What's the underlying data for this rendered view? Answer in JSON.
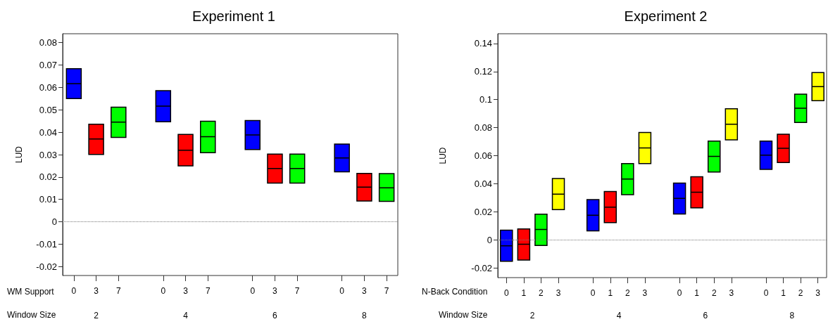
{
  "chart_data": [
    {
      "type": "box",
      "title": "Experiment 1",
      "xlabel": "WM Support",
      "ylabel": "LUD",
      "categories": [
        "0",
        "3",
        "7",
        null,
        "0",
        "3",
        "7",
        null,
        "0",
        "3",
        "7",
        null,
        "0",
        "3",
        "7"
      ],
      "colors": [
        "#0000ff",
        "#ff0000",
        "#00ff00",
        null,
        "#0000ff",
        "#ff0000",
        "#00ff00",
        null,
        "#0000ff",
        "#ff0000",
        "#00ff00",
        null,
        "#0000ff",
        "#ff0000",
        "#00ff00"
      ],
      "boxes": [
        {
          "low": 0.055,
          "q1": 0.055,
          "median": 0.0617,
          "q3": 0.0684,
          "high": 0.0684
        },
        {
          "low": 0.0301,
          "q1": 0.0301,
          "median": 0.037,
          "q3": 0.0436,
          "high": 0.0436
        },
        {
          "low": 0.0377,
          "q1": 0.0377,
          "median": 0.0445,
          "q3": 0.0512,
          "high": 0.0512
        },
        null,
        {
          "low": 0.0447,
          "q1": 0.0447,
          "median": 0.0517,
          "q3": 0.0586,
          "high": 0.0586
        },
        {
          "low": 0.025,
          "q1": 0.025,
          "median": 0.032,
          "q3": 0.039,
          "high": 0.039
        },
        {
          "low": 0.0309,
          "q1": 0.0309,
          "median": 0.038,
          "q3": 0.0449,
          "high": 0.0449
        },
        null,
        {
          "low": 0.0323,
          "q1": 0.0323,
          "median": 0.0388,
          "q3": 0.0452,
          "high": 0.0452
        },
        {
          "low": 0.0173,
          "q1": 0.0173,
          "median": 0.0238,
          "q3": 0.0302,
          "high": 0.0302
        },
        {
          "low": 0.0173,
          "q1": 0.0173,
          "median": 0.0238,
          "q3": 0.0302,
          "high": 0.0302
        },
        null,
        {
          "low": 0.0223,
          "q1": 0.0223,
          "median": 0.0285,
          "q3": 0.0347,
          "high": 0.0347
        },
        {
          "low": 0.0093,
          "q1": 0.0093,
          "median": 0.0155,
          "q3": 0.0216,
          "high": 0.0216
        },
        {
          "low": 0.0091,
          "q1": 0.0091,
          "median": 0.0152,
          "q3": 0.0215,
          "high": 0.0215
        }
      ],
      "ylim": [
        -0.024,
        0.084
      ],
      "yticks": [
        -0.02,
        -0.01,
        0,
        0.01,
        0.02,
        0.03,
        0.04,
        0.05,
        0.06,
        0.07,
        0.08
      ],
      "ref_lines": [
        {
          "axis": "y",
          "value": 0,
          "color": "#777777",
          "line_style": "dotted"
        }
      ],
      "annotations": [
        "Window Size",
        "2",
        "4",
        "6",
        "8"
      ],
      "grid": false
    },
    {
      "type": "box",
      "title": "Experiment 2",
      "xlabel": "N-Back Condition",
      "ylabel": "LUD",
      "categories": [
        "0",
        "1",
        "2",
        "3",
        null,
        "0",
        "1",
        "2",
        "3",
        null,
        "0",
        "1",
        "2",
        "3",
        null,
        "0",
        "1",
        "2",
        "3"
      ],
      "colors": [
        "#0000ff",
        "#ff0000",
        "#00ff00",
        "#ffff00",
        null,
        "#0000ff",
        "#ff0000",
        "#00ff00",
        "#ffff00",
        null,
        "#0000ff",
        "#ff0000",
        "#00ff00",
        "#ffff00",
        null,
        "#0000ff",
        "#ff0000",
        "#00ff00",
        "#ffff00"
      ],
      "boxes": [
        {
          "low": -0.0154,
          "q1": -0.0154,
          "median": -0.0043,
          "q3": 0.0068,
          "high": 0.0068
        },
        {
          "low": -0.0145,
          "q1": -0.0145,
          "median": -0.0032,
          "q3": 0.0077,
          "high": 0.0077
        },
        {
          "low": -0.004,
          "q1": -0.004,
          "median": 0.0073,
          "q3": 0.0183,
          "high": 0.0183
        },
        {
          "low": 0.0215,
          "q1": 0.0215,
          "median": 0.0326,
          "q3": 0.0437,
          "high": 0.0437
        },
        null,
        {
          "low": 0.0064,
          "q1": 0.0064,
          "median": 0.0175,
          "q3": 0.0286,
          "high": 0.0286
        },
        {
          "low": 0.0122,
          "q1": 0.0122,
          "median": 0.0233,
          "q3": 0.0344,
          "high": 0.0344
        },
        {
          "low": 0.0322,
          "q1": 0.0322,
          "median": 0.0433,
          "q3": 0.0544,
          "high": 0.0544
        },
        {
          "low": 0.0544,
          "q1": 0.0544,
          "median": 0.0655,
          "q3": 0.0766,
          "high": 0.0766
        },
        null,
        {
          "low": 0.0184,
          "q1": 0.0184,
          "median": 0.0295,
          "q3": 0.0405,
          "high": 0.0405
        },
        {
          "low": 0.0228,
          "q1": 0.0228,
          "median": 0.0339,
          "q3": 0.045,
          "high": 0.045
        },
        {
          "low": 0.0484,
          "q1": 0.0484,
          "median": 0.0595,
          "q3": 0.0704,
          "high": 0.0704
        },
        {
          "low": 0.0713,
          "q1": 0.0713,
          "median": 0.0824,
          "q3": 0.0935,
          "high": 0.0935
        },
        null,
        {
          "low": 0.0502,
          "q1": 0.0502,
          "median": 0.0604,
          "q3": 0.0704,
          "high": 0.0704
        },
        {
          "low": 0.0551,
          "q1": 0.0551,
          "median": 0.0653,
          "q3": 0.0753,
          "high": 0.0753
        },
        {
          "low": 0.0837,
          "q1": 0.0837,
          "median": 0.0939,
          "q3": 0.1039,
          "high": 0.1039
        },
        {
          "low": 0.0992,
          "q1": 0.0992,
          "median": 0.1093,
          "q3": 0.1193,
          "high": 0.1193
        }
      ],
      "ylim": [
        -0.027,
        0.147
      ],
      "yticks": [
        -0.02,
        0,
        0.02,
        0.04,
        0.06,
        0.08,
        0.1,
        0.12,
        0.14
      ],
      "ref_lines": [
        {
          "axis": "y",
          "value": 0,
          "color": "#777777",
          "line_style": "dotted"
        }
      ],
      "annotations": [
        "Window Size",
        "2",
        "4",
        "6",
        "8"
      ],
      "grid": false
    }
  ]
}
